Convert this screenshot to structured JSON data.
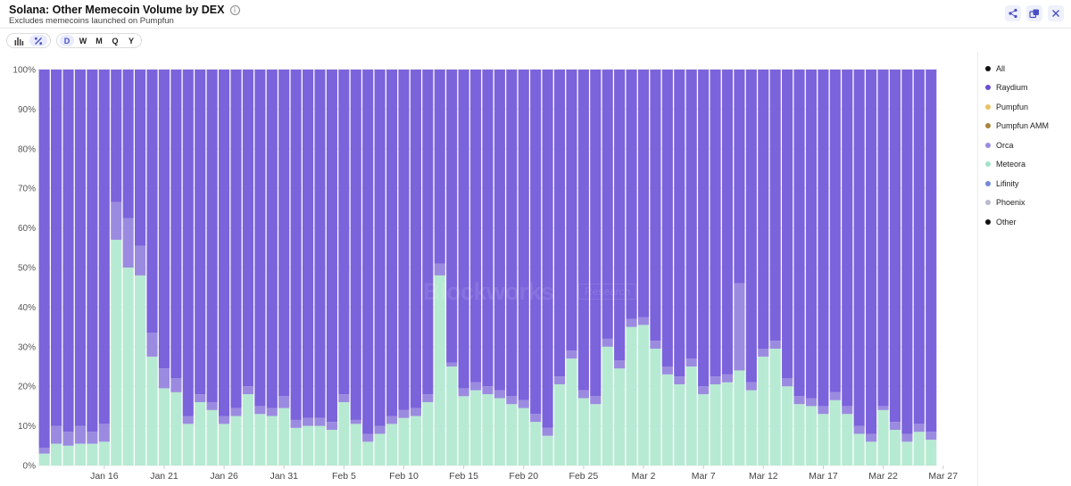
{
  "header": {
    "title": "Solana: Other Memecoin Volume by DEX",
    "subtitle": "Excludes memecoins launched on Pumpfun",
    "info_icon": "info-icon"
  },
  "actions": [
    {
      "name": "share-icon"
    },
    {
      "name": "duplicate-icon"
    },
    {
      "name": "close-icon"
    }
  ],
  "toolbar": {
    "chart_type_icons": [
      "bar-chart-icon",
      "percent-icon"
    ],
    "periods": [
      "D",
      "W",
      "M",
      "Q",
      "Y"
    ],
    "active_period": "D"
  },
  "watermark": {
    "brand": "Blockworks",
    "tag": "Research"
  },
  "legend": [
    {
      "label": "All",
      "color": "#111111"
    },
    {
      "label": "Raydium",
      "color": "#6a4fd6"
    },
    {
      "label": "Pumpfun",
      "color": "#e8c266"
    },
    {
      "label": "Pumpfun AMM",
      "color": "#a8843a"
    },
    {
      "label": "Orca",
      "color": "#9b8be0"
    },
    {
      "label": "Meteora",
      "color": "#a3e3c9"
    },
    {
      "label": "Lifinity",
      "color": "#7389d6"
    },
    {
      "label": "Phoenix",
      "color": "#b9b9cf"
    },
    {
      "label": "Other",
      "color": "#111111"
    }
  ],
  "chart_data": {
    "type": "bar",
    "stacked": "percent",
    "ylim": [
      0,
      100
    ],
    "y_ticks": [
      "0%",
      "10%",
      "20%",
      "30%",
      "40%",
      "50%",
      "60%",
      "70%",
      "80%",
      "90%",
      "100%"
    ],
    "x_tick_labels": [
      "Jan 16",
      "Jan 21",
      "Jan 26",
      "Jan 31",
      "Feb 5",
      "Feb 10",
      "Feb 15",
      "Feb 20",
      "Feb 25",
      "Mar 2",
      "Mar 7",
      "Mar 12",
      "Mar 17",
      "Mar 22",
      "Mar 27"
    ],
    "x_tick_index": [
      5,
      10,
      15,
      20,
      25,
      30,
      35,
      40,
      45,
      50,
      55,
      60,
      65,
      70,
      75
    ],
    "grid": true,
    "legend_position": "right",
    "series": [
      {
        "name": "Meteora",
        "color": "#b7ead3",
        "values": [
          3,
          5.5,
          5,
          5.5,
          5.5,
          6,
          57,
          50,
          48,
          27.5,
          19.5,
          18.5,
          10.5,
          16,
          14,
          10.5,
          12.5,
          18,
          13,
          12.5,
          14.5,
          9.5,
          10,
          10,
          9,
          16,
          10.5,
          6,
          8,
          10.5,
          12,
          12.5,
          16,
          48,
          25,
          17.5,
          19,
          18,
          17,
          15.5,
          14.5,
          11,
          7.5,
          20.5,
          27,
          17,
          15.5,
          30,
          24.5,
          35,
          35.5,
          29.5,
          23,
          20.5,
          25,
          18,
          20.5,
          21,
          24,
          19,
          27.5,
          29.5,
          20,
          15.5,
          15,
          13,
          16.5,
          13,
          8,
          6,
          14,
          9,
          6,
          8.5,
          6.5
        ]
      },
      {
        "name": "Orca",
        "color": "#9b8be0",
        "values": [
          1.5,
          4.5,
          3.5,
          4.5,
          3,
          4.5,
          9.5,
          12.5,
          7.5,
          6,
          5,
          3.5,
          2,
          2,
          2,
          2,
          2,
          2,
          2,
          2,
          3,
          2,
          2,
          2,
          2,
          2,
          1,
          2,
          2,
          2,
          2,
          2,
          2,
          3,
          1,
          2,
          2,
          2,
          2,
          2,
          2,
          2,
          2,
          2,
          2,
          2,
          2,
          2,
          2,
          2,
          2,
          2,
          2,
          2,
          2,
          2,
          2,
          2,
          22,
          2,
          2,
          2,
          2,
          2,
          2,
          2,
          2,
          2,
          2,
          2,
          1,
          2,
          2,
          2,
          2
        ]
      },
      {
        "name": "Raydium",
        "color": "#7b63dc",
        "values": [
          95.5,
          90,
          91.5,
          90,
          91.5,
          89.5,
          33.5,
          37.5,
          44.5,
          66.5,
          75.5,
          78,
          87.5,
          82,
          84,
          87.5,
          85.5,
          80,
          85,
          85.5,
          82.5,
          88.5,
          88,
          88,
          89,
          82,
          88.5,
          92,
          90,
          87.5,
          86,
          85.5,
          82,
          49,
          74,
          80.5,
          79,
          80,
          81,
          82.5,
          83.5,
          87,
          90.5,
          77.5,
          71,
          81,
          82.5,
          68,
          73.5,
          63,
          62.5,
          68.5,
          75,
          77.5,
          73,
          80,
          77.5,
          77,
          54,
          79,
          70.5,
          68.5,
          78,
          82.5,
          83,
          85,
          81.5,
          85,
          90,
          92,
          85,
          89,
          92,
          89.5,
          91.5
        ]
      }
    ]
  }
}
